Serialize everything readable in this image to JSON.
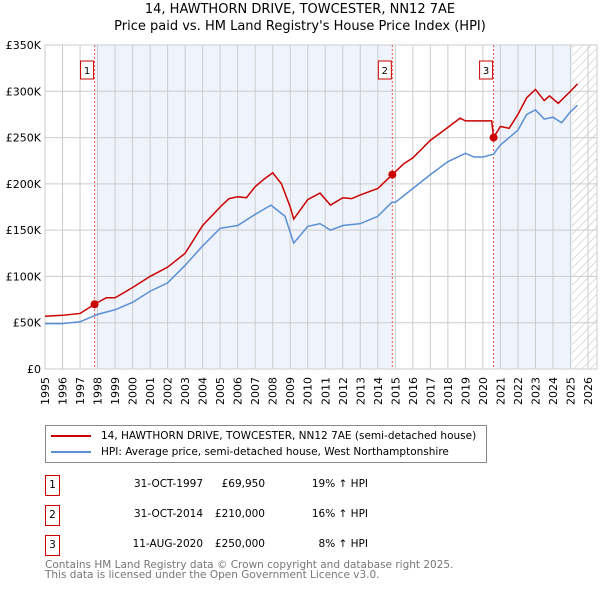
{
  "title": "14, HAWTHORN DRIVE, TOWCESTER, NN12 7AE",
  "subtitle": "Price paid vs. HM Land Registry's House Price Index (HPI)",
  "chart_data": {
    "type": "line",
    "title": "14, HAWTHORN DRIVE, TOWCESTER, NN12 7AE",
    "subtitle": "Price paid vs. HM Land Registry's House Price Index (HPI)",
    "xlim": [
      1995,
      2026
    ],
    "ylim": [
      0,
      350000
    ],
    "x_ticks": [
      1995,
      1996,
      1997,
      1998,
      1999,
      2000,
      2001,
      2002,
      2003,
      2004,
      2005,
      2006,
      2007,
      2008,
      2009,
      2010,
      2011,
      2012,
      2013,
      2014,
      2015,
      2016,
      2017,
      2018,
      2019,
      2020,
      2021,
      2022,
      2023,
      2024,
      2025,
      2026
    ],
    "y_ticks": [
      {
        "v": 0,
        "label": "£0"
      },
      {
        "v": 50000,
        "label": "£50K"
      },
      {
        "v": 100000,
        "label": "£100K"
      },
      {
        "v": 150000,
        "label": "£150K"
      },
      {
        "v": 200000,
        "label": "£200K"
      },
      {
        "v": 250000,
        "label": "£250K"
      },
      {
        "v": 300000,
        "label": "£300K"
      },
      {
        "v": 350000,
        "label": "£350K"
      }
    ],
    "grid": true,
    "legend_placement": "below",
    "series": [
      {
        "name": "14, HAWTHORN DRIVE, TOWCESTER, NN12 7AE (semi-detached house)",
        "color": "#cc0000",
        "x": [
          1995,
          1996,
          1997,
          1997.83,
          1998.5,
          1999,
          2000,
          2001,
          2002,
          2003,
          2004,
          2005,
          2005.5,
          2006,
          2006.5,
          2007,
          2007.5,
          2008,
          2008.5,
          2009,
          2009.2,
          2010,
          2010.7,
          2011.3,
          2012,
          2012.5,
          2013,
          2014,
          2014.83,
          2015.5,
          2016,
          2017,
          2018,
          2018.7,
          2019,
          2020,
          2020.5,
          2020.61,
          2021,
          2021.5,
          2022,
          2022.5,
          2023,
          2023.5,
          2023.8,
          2024.3,
          2025,
          2025.4
        ],
        "y": [
          57000,
          58000,
          60000,
          69950,
          77000,
          77000,
          88000,
          100000,
          110000,
          125000,
          155000,
          175000,
          184000,
          186000,
          185000,
          197000,
          205000,
          212000,
          200000,
          175000,
          162000,
          183000,
          190000,
          177000,
          185000,
          184000,
          188000,
          195000,
          210000,
          222000,
          228000,
          247000,
          261000,
          271000,
          268000,
          268000,
          268000,
          250000,
          262000,
          260000,
          275000,
          293000,
          302000,
          290000,
          295000,
          287000,
          300000,
          308000
        ]
      },
      {
        "name": "HPI: Average price, semi-detached house, West Northamptonshire",
        "color": "#5b8fd4",
        "x": [
          1995,
          1996,
          1997,
          1998,
          1999,
          2000,
          2001,
          2002,
          2003,
          2004,
          2005,
          2006,
          2007,
          2007.9,
          2008.7,
          2009.2,
          2010,
          2010.7,
          2011.3,
          2012,
          2013,
          2014,
          2014.8,
          2015,
          2016,
          2017,
          2018,
          2019,
          2019.5,
          2020,
          2020.6,
          2021,
          2022,
          2022.5,
          2023,
          2023.5,
          2024,
          2024.5,
          2025,
          2025.4
        ],
        "y": [
          49000,
          49000,
          51000,
          59000,
          64000,
          72000,
          84000,
          93000,
          112000,
          133000,
          152000,
          155000,
          167000,
          177000,
          165000,
          136000,
          154000,
          157000,
          150000,
          155000,
          157000,
          165000,
          180000,
          180000,
          195000,
          210000,
          224000,
          233000,
          229000,
          229000,
          232000,
          242000,
          258000,
          275000,
          280000,
          270000,
          272000,
          266000,
          278000,
          285000
        ]
      }
    ],
    "transactions": [
      {
        "id": "1",
        "x": 1997.83,
        "date": "31-OCT-1997",
        "price": 69950,
        "price_label": "£69,950",
        "hpi": "19% ↑ HPI"
      },
      {
        "id": "2",
        "x": 2014.83,
        "date": "31-OCT-2014",
        "price": 210000,
        "price_label": "£210,000",
        "hpi": "16% ↑ HPI"
      },
      {
        "id": "3",
        "x": 2020.61,
        "date": "11-AUG-2020",
        "price": 250000,
        "price_label": "£250,000",
        "hpi": "8% ↑ HPI"
      }
    ],
    "shaded_ranges": [
      [
        1997.83,
        2014.83
      ],
      [
        2020.61,
        2025.1
      ]
    ],
    "hatched_from": 2025.1
  },
  "footer": [
    "Contains HM Land Registry data © Crown copyright and database right 2025.",
    "This data is licensed under the Open Government Licence v3.0."
  ]
}
